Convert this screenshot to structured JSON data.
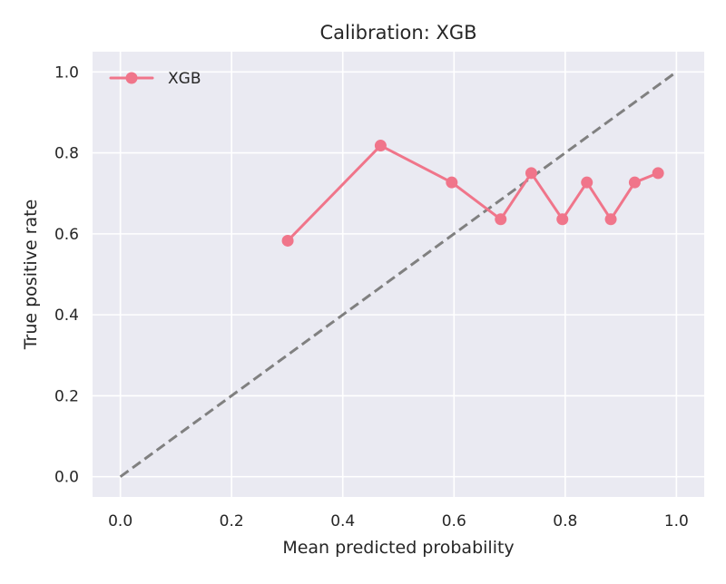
{
  "chart_data": {
    "type": "line",
    "title": "Calibration: XGB",
    "xlabel": "Mean predicted probability",
    "ylabel": "True positive rate",
    "xlim": [
      -0.05,
      1.05
    ],
    "ylim": [
      -0.05,
      1.05
    ],
    "xticks": [
      0.0,
      0.2,
      0.4,
      0.6,
      0.8,
      1.0
    ],
    "xtick_labels": [
      "0.0",
      "0.2",
      "0.4",
      "0.6",
      "0.8",
      "1.0"
    ],
    "yticks": [
      0.0,
      0.2,
      0.4,
      0.6,
      0.8,
      1.0
    ],
    "ytick_labels": [
      "0.0",
      "0.2",
      "0.4",
      "0.6",
      "0.8",
      "1.0"
    ],
    "grid": true,
    "legend_position": "top-left",
    "series": [
      {
        "name": "XGB",
        "color": "#f0758a",
        "marker": "circle",
        "x": [
          0.301,
          0.468,
          0.596,
          0.684,
          0.739,
          0.795,
          0.839,
          0.882,
          0.925,
          0.967
        ],
        "y": [
          0.583,
          0.818,
          0.727,
          0.636,
          0.75,
          0.636,
          0.727,
          0.636,
          0.727,
          0.75
        ]
      }
    ],
    "reference_line": {
      "x": [
        0.0,
        1.0
      ],
      "y": [
        0.0,
        1.0
      ],
      "color": "#808080",
      "style": "dashed"
    }
  }
}
